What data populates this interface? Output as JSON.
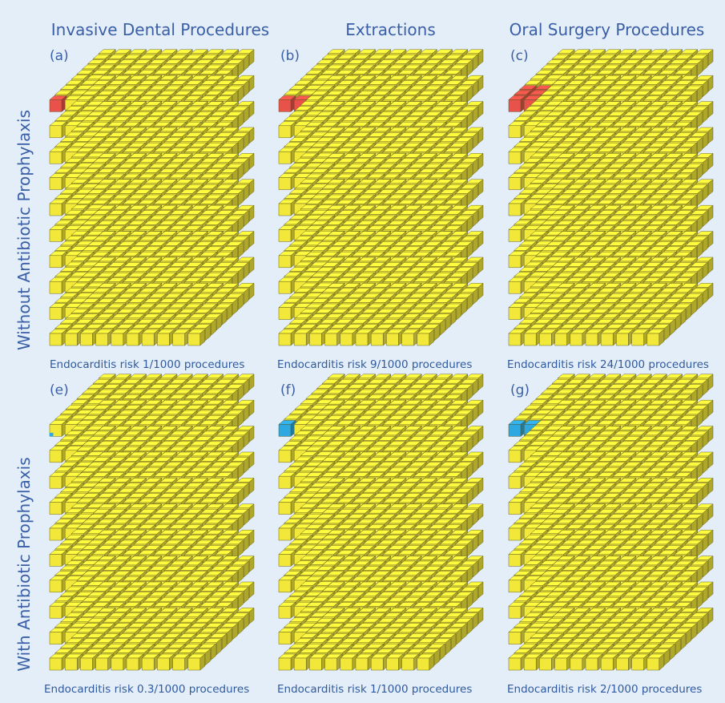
{
  "columns": [
    {
      "title": "Invasive Dental Procedures"
    },
    {
      "title": "Extractions"
    },
    {
      "title": "Oral Surgery Procedures"
    }
  ],
  "rows": [
    {
      "label": "Without Antibiotic Prophylaxis",
      "highlight_color": "#e9524a"
    },
    {
      "label": "With Antibiotic Prophylaxis",
      "highlight_color": "#2ea8e0"
    }
  ],
  "panels": [
    {
      "letter": "(a)",
      "caption": "Endocarditis risk 1/1000 procedures",
      "risk_per_1000": 1
    },
    {
      "letter": "(b)",
      "caption": "Endocarditis risk 9/1000 procedures",
      "risk_per_1000": 9
    },
    {
      "letter": "(c)",
      "caption": "Endocarditis risk 24/1000 procedures",
      "risk_per_1000": 24
    },
    {
      "letter": "(e)",
      "caption": "Endocarditis risk 0.3/1000 procedures",
      "risk_per_1000": 0.3
    },
    {
      "letter": "(f)",
      "caption": "Endocarditis risk 1/1000 procedures",
      "risk_per_1000": 1
    },
    {
      "letter": "(g)",
      "caption": "Endocarditis risk 2/1000 procedures",
      "risk_per_1000": 2
    }
  ],
  "cube_grid": {
    "width": 10,
    "height": 10,
    "depth": 10
  },
  "colors": {
    "cube": "#f2e83a",
    "background": "#e4eef8",
    "text": "#3a5fa6"
  }
}
